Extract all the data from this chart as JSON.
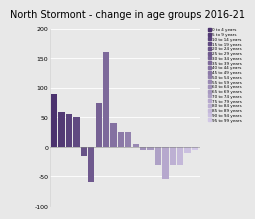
{
  "title": "North Stormont - change in age groups 2016-21",
  "categories": [
    "0 to 4 years",
    "5 to 9 years",
    "10 to 14 years",
    "15 to 19 years",
    "20 to 24 years",
    "25 to 29 years",
    "30 to 34 years",
    "35 to 39 years",
    "40 to 44 years",
    "45 to 49 years",
    "50 to 54 years",
    "55 to 59 years",
    "60 to 64 years",
    "65 to 69 years",
    "70 to 74 years",
    "75 to 79 years",
    "80 to 84 years",
    "85 to 89 years",
    "90 to 94 years",
    "95 to 99 years"
  ],
  "values": [
    90,
    60,
    55,
    50,
    -15,
    -60,
    75,
    160,
    40,
    25,
    25,
    5,
    -5,
    -5,
    -30,
    -55,
    -30,
    -30,
    -10,
    -5
  ],
  "ylim": [
    -100,
    200
  ],
  "yticks": [
    -100,
    -50,
    0,
    50,
    100,
    150,
    200
  ],
  "legend_entries": [
    "0 to 4 years",
    "5 to 9 years",
    "10 to 14 years",
    "15 to 19 years",
    "20 to 24 years",
    "25 to 29 years",
    "30 to 34 years",
    "35 to 39 years",
    "40 to 44 years",
    "45 to 49 years",
    "50 to 54 years",
    "55 to 59 years",
    "60 to 64 years",
    "65 to 69 years",
    "70 to 74 years",
    "75 to 79 years",
    "80 to 84 years",
    "85 to 89 years",
    "90 to 94 years",
    "95 to 99 years"
  ],
  "dark_purple": [
    75,
    50,
    110
  ],
  "light_purple": [
    210,
    200,
    230
  ],
  "background_color": "#e8e8e8",
  "title_fontsize": 7.0
}
